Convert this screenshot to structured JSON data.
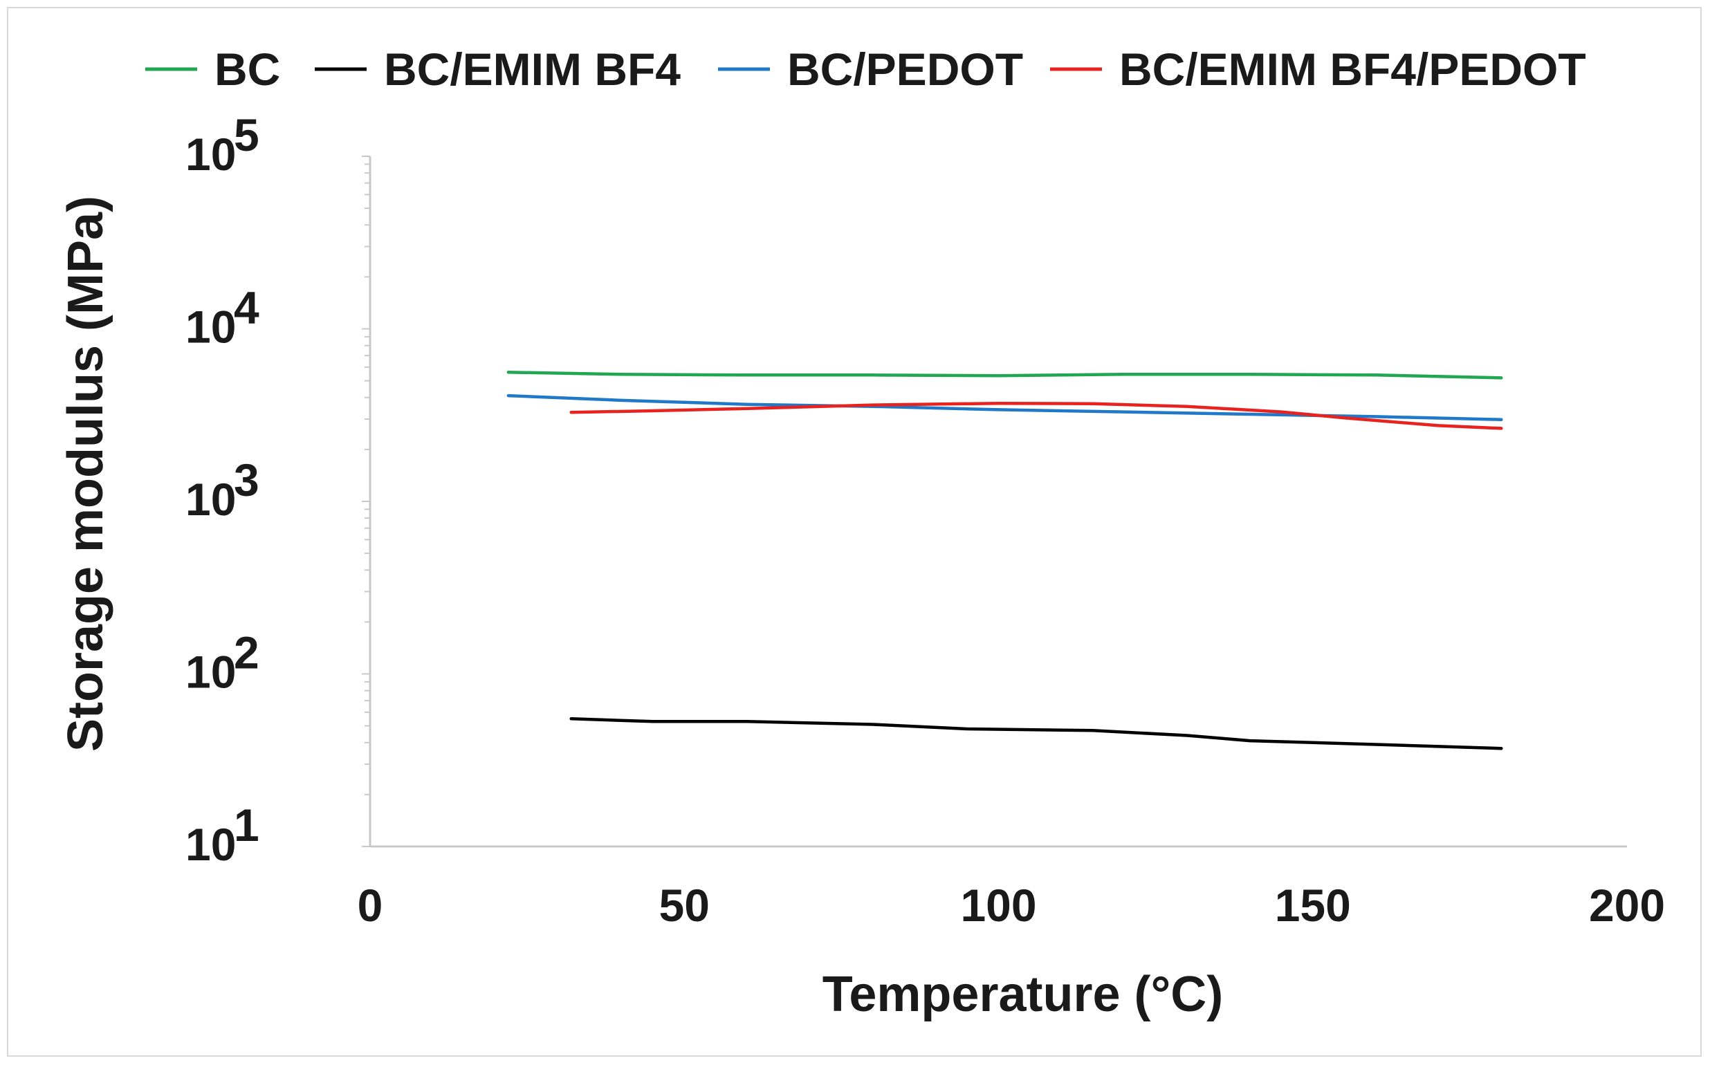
{
  "chart_data": {
    "type": "line",
    "title": "",
    "xlabel": "Temperature (°C)",
    "ylabel": "Storage modulus (MPa)",
    "xlim": [
      0,
      200
    ],
    "ylim": [
      10,
      100000
    ],
    "yscale": "log",
    "xticks": [
      "0",
      "50",
      "100",
      "150",
      "200"
    ],
    "yticks": [
      {
        "base": "10",
        "exp": "5",
        "value": 100000
      },
      {
        "base": "10",
        "exp": "4",
        "value": 10000
      },
      {
        "base": "10",
        "exp": "3",
        "value": 1000
      },
      {
        "base": "10",
        "exp": "2",
        "value": 100
      },
      {
        "base": "10",
        "exp": "1",
        "value": 10
      }
    ],
    "grid": false,
    "legend_position": "top",
    "series": [
      {
        "name": "BC",
        "color": "#21a651",
        "x": [
          22,
          40,
          60,
          80,
          100,
          120,
          140,
          160,
          180
        ],
        "y": [
          5600,
          5450,
          5400,
          5400,
          5350,
          5450,
          5450,
          5400,
          5200
        ]
      },
      {
        "name": "BC/EMIM BF4",
        "color": "#000000",
        "x": [
          32,
          45,
          60,
          80,
          95,
          115,
          130,
          140,
          160,
          180
        ],
        "y": [
          55,
          53,
          53,
          51,
          48,
          47,
          44,
          41,
          39,
          37
        ]
      },
      {
        "name": "BC/PEDOT",
        "color": "#1f78c8",
        "x": [
          22,
          40,
          60,
          80,
          100,
          120,
          140,
          160,
          180
        ],
        "y": [
          4100,
          3850,
          3650,
          3550,
          3400,
          3300,
          3200,
          3100,
          2980
        ]
      },
      {
        "name": "BC/EMIM BF4/PEDOT",
        "color": "#e8231f",
        "x": [
          32,
          45,
          60,
          80,
          100,
          115,
          130,
          145,
          155,
          170,
          180
        ],
        "y": [
          3280,
          3350,
          3450,
          3620,
          3700,
          3680,
          3550,
          3300,
          3050,
          2750,
          2650
        ]
      }
    ]
  }
}
